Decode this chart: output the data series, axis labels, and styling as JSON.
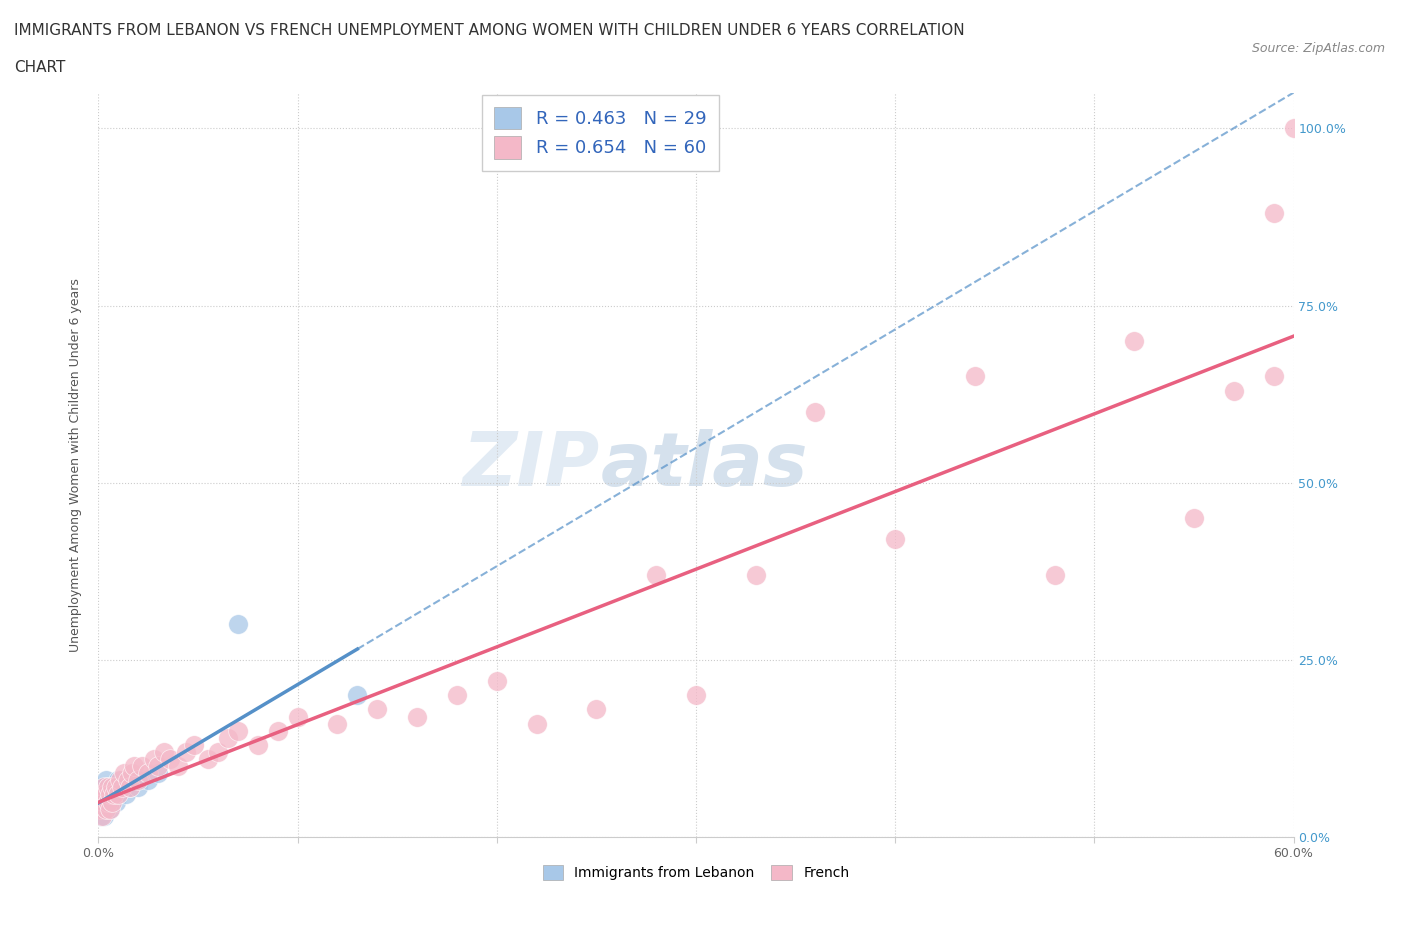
{
  "title_line1": "IMMIGRANTS FROM LEBANON VS FRENCH UNEMPLOYMENT AMONG WOMEN WITH CHILDREN UNDER 6 YEARS CORRELATION",
  "title_line2": "CHART",
  "source": "Source: ZipAtlas.com",
  "ylabel": "Unemployment Among Women with Children Under 6 years",
  "legend_label1": "Immigrants from Lebanon",
  "legend_label2": "French",
  "R1": 0.463,
  "N1": 29,
  "R2": 0.654,
  "N2": 60,
  "color_blue": "#a8c8e8",
  "color_pink": "#f4b8c8",
  "color_blue_line": "#5590c8",
  "color_pink_line": "#e86080",
  "watermark_zip": "ZIP",
  "watermark_atlas": "atlas",
  "ytick_labels": [
    "0.0%",
    "25.0%",
    "50.0%",
    "75.0%",
    "100.0%"
  ],
  "ytick_vals": [
    0.0,
    0.25,
    0.5,
    0.75,
    1.0
  ],
  "xlim": [
    0.0,
    0.6
  ],
  "ylim": [
    0.0,
    1.05
  ],
  "blue_x": [
    0.001,
    0.001,
    0.002,
    0.002,
    0.003,
    0.003,
    0.003,
    0.004,
    0.004,
    0.004,
    0.005,
    0.005,
    0.006,
    0.006,
    0.007,
    0.007,
    0.008,
    0.009,
    0.01,
    0.01,
    0.012,
    0.014,
    0.016,
    0.018,
    0.02,
    0.025,
    0.03,
    0.07,
    0.13
  ],
  "blue_y": [
    0.03,
    0.05,
    0.04,
    0.06,
    0.03,
    0.05,
    0.07,
    0.04,
    0.06,
    0.08,
    0.05,
    0.07,
    0.04,
    0.06,
    0.05,
    0.07,
    0.06,
    0.05,
    0.06,
    0.08,
    0.07,
    0.06,
    0.07,
    0.08,
    0.07,
    0.08,
    0.09,
    0.3,
    0.2
  ],
  "pink_x": [
    0.001,
    0.002,
    0.002,
    0.003,
    0.003,
    0.004,
    0.004,
    0.005,
    0.005,
    0.006,
    0.006,
    0.007,
    0.007,
    0.008,
    0.009,
    0.01,
    0.011,
    0.012,
    0.013,
    0.015,
    0.016,
    0.017,
    0.018,
    0.02,
    0.022,
    0.025,
    0.028,
    0.03,
    0.033,
    0.036,
    0.04,
    0.044,
    0.048,
    0.055,
    0.06,
    0.065,
    0.07,
    0.08,
    0.09,
    0.1,
    0.12,
    0.14,
    0.16,
    0.18,
    0.2,
    0.22,
    0.25,
    0.28,
    0.3,
    0.33,
    0.36,
    0.4,
    0.44,
    0.48,
    0.52,
    0.55,
    0.57,
    0.59,
    0.59,
    0.6
  ],
  "pink_y": [
    0.04,
    0.06,
    0.03,
    0.05,
    0.07,
    0.04,
    0.06,
    0.05,
    0.07,
    0.04,
    0.06,
    0.05,
    0.07,
    0.06,
    0.07,
    0.06,
    0.08,
    0.07,
    0.09,
    0.08,
    0.07,
    0.09,
    0.1,
    0.08,
    0.1,
    0.09,
    0.11,
    0.1,
    0.12,
    0.11,
    0.1,
    0.12,
    0.13,
    0.11,
    0.12,
    0.14,
    0.15,
    0.13,
    0.15,
    0.17,
    0.16,
    0.18,
    0.17,
    0.2,
    0.22,
    0.16,
    0.18,
    0.37,
    0.2,
    0.37,
    0.6,
    0.42,
    0.65,
    0.37,
    0.7,
    0.45,
    0.63,
    0.88,
    0.65,
    1.0
  ],
  "title_fontsize": 11,
  "source_fontsize": 9,
  "tick_fontsize": 9,
  "ylabel_fontsize": 9,
  "legend_fontsize": 13
}
